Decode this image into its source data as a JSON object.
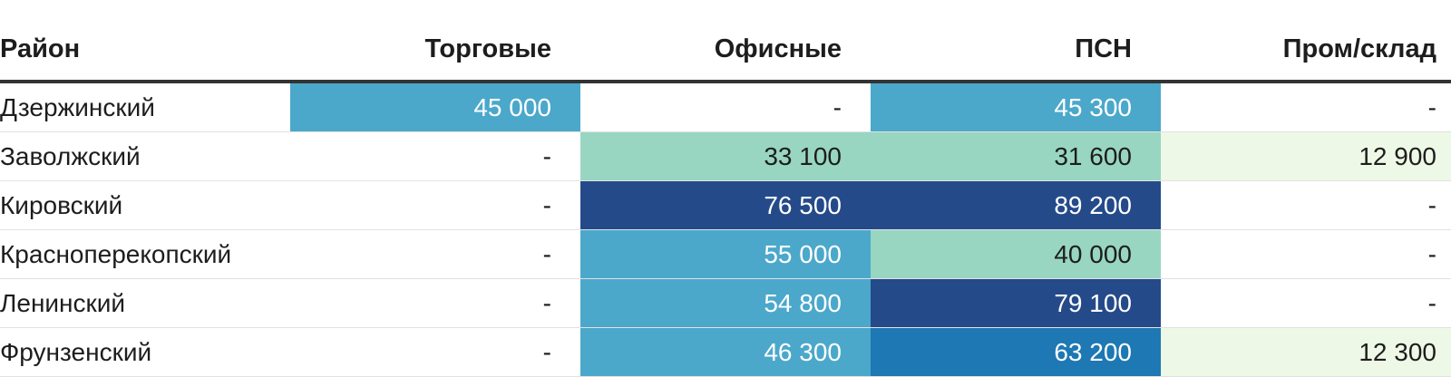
{
  "chart_data": {
    "type": "table",
    "columns": [
      "Район",
      "Торговые",
      "Офисные",
      "ПСН",
      "Пром/склад"
    ],
    "rows": [
      {
        "name": "Дзержинский",
        "values": [
          45000,
          null,
          45300,
          null
        ],
        "display": [
          "45 000",
          "-",
          "45 300",
          "-"
        ]
      },
      {
        "name": "Заволжский",
        "values": [
          null,
          33100,
          31600,
          12900
        ],
        "display": [
          "-",
          "33 100",
          "31 600",
          "12 900"
        ]
      },
      {
        "name": "Кировский",
        "values": [
          null,
          76500,
          89200,
          null
        ],
        "display": [
          "-",
          "76 500",
          "89 200",
          "-"
        ]
      },
      {
        "name": "Красноперекопский",
        "values": [
          null,
          55000,
          40000,
          null
        ],
        "display": [
          "-",
          "55 000",
          "40 000",
          "-"
        ]
      },
      {
        "name": "Ленинский",
        "values": [
          null,
          54800,
          79100,
          null
        ],
        "display": [
          "-",
          "54 800",
          "79 100",
          "-"
        ]
      },
      {
        "name": "Фрунзенский",
        "values": [
          null,
          46300,
          63200,
          12300
        ],
        "display": [
          "-",
          "46 300",
          "63 200",
          "12 300"
        ]
      }
    ]
  },
  "colors": {
    "empty": "#ffffff",
    "very_light": "#eef8e6",
    "light": "#98d6c1",
    "medium": "#4ba8cb",
    "strong": "#1d78b4",
    "darkest": "#244a8a",
    "text_dark": "#1d1d1d",
    "text_light": "#ffffff"
  }
}
